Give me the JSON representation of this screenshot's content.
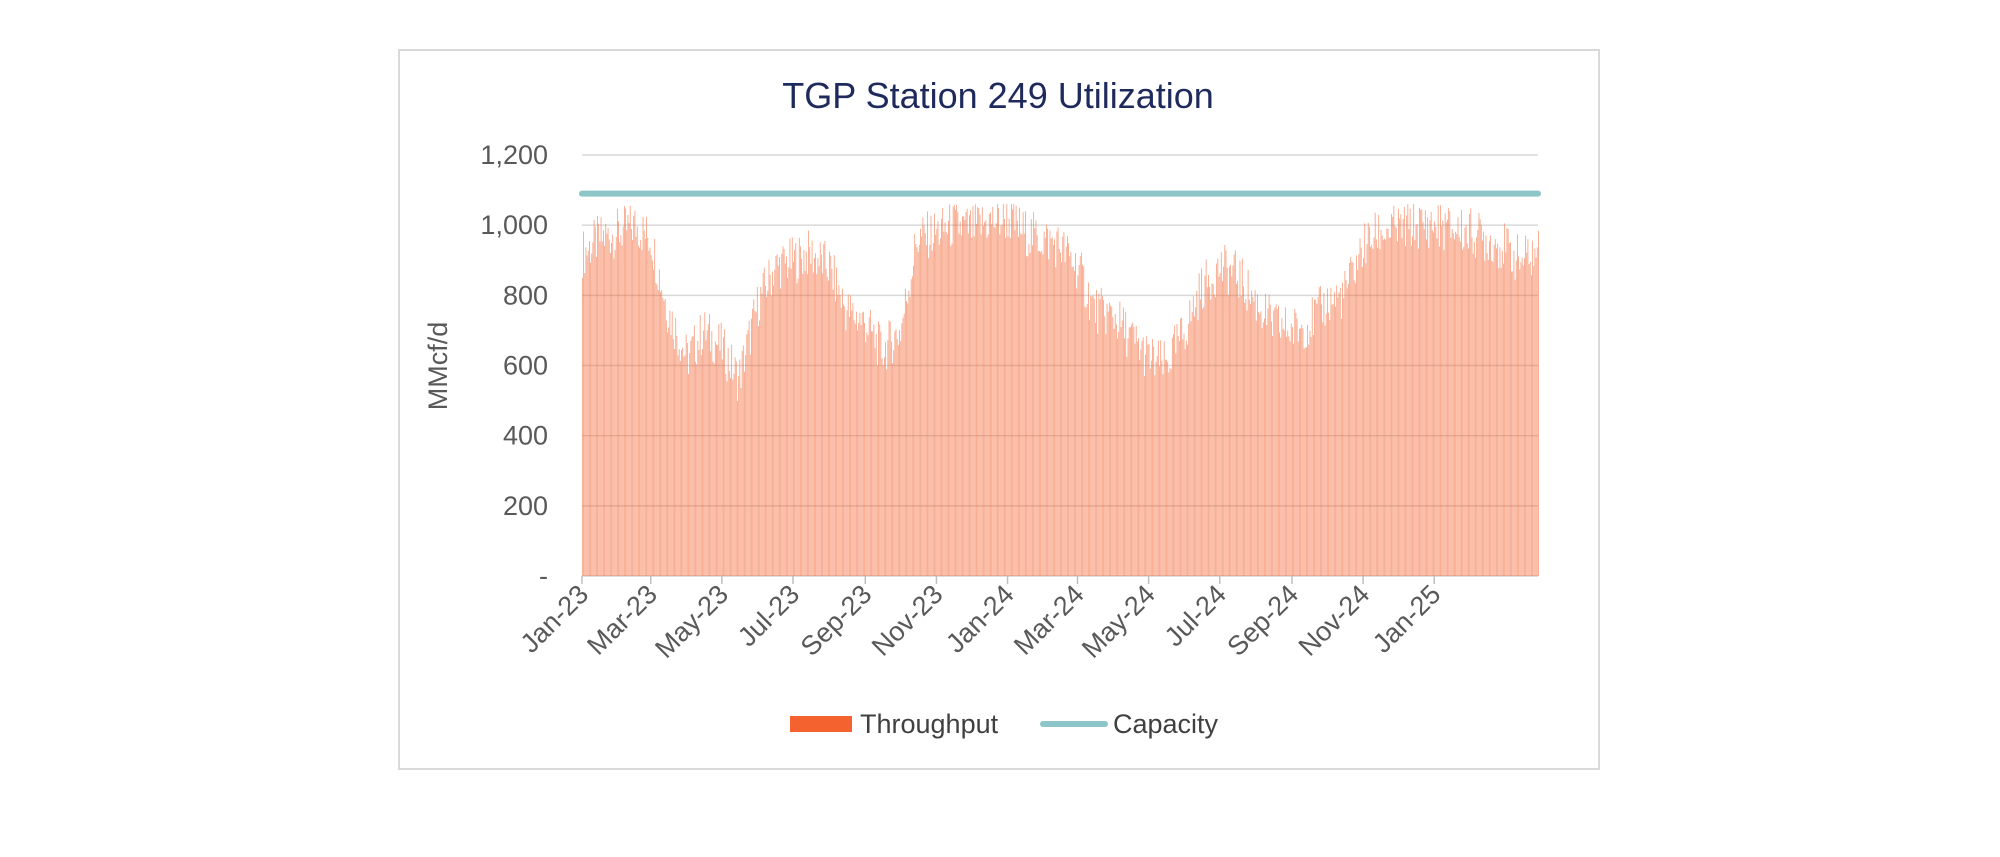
{
  "chart_data": {
    "type": "bar",
    "title": "TGP Station 249 Utilization",
    "xlabel": "",
    "ylabel": "MMcf/d",
    "ylim": [
      0,
      1200
    ],
    "y_ticks": [
      "-",
      "200",
      "400",
      "600",
      "800",
      "1,000",
      "1,200"
    ],
    "y_tick_values": [
      0,
      200,
      400,
      600,
      800,
      1000,
      1200
    ],
    "x_ticks": [
      "Jan-23",
      "Mar-23",
      "May-23",
      "Jul-23",
      "Sep-23",
      "Nov-23",
      "Jan-24",
      "Mar-24",
      "May-24",
      "Jul-24",
      "Sep-24",
      "Nov-24",
      "Jan-25"
    ],
    "x_tick_dates": [
      "2023-01-01",
      "2023-03-01",
      "2023-05-01",
      "2023-07-01",
      "2023-09-01",
      "2023-11-01",
      "2024-01-01",
      "2024-03-01",
      "2024-05-01",
      "2024-07-01",
      "2024-09-01",
      "2024-11-01",
      "2025-01-01"
    ],
    "x_range": [
      "2023-01-01",
      "2025-03-31"
    ],
    "grid": true,
    "legend_position": "bottom",
    "series": [
      {
        "name": "Throughput",
        "type": "bar",
        "color": "#f4622f",
        "fill_color": "#f7a080",
        "x": [
          "2023-01-01",
          "2023-01-15",
          "2023-02-01",
          "2023-02-15",
          "2023-03-01",
          "2023-03-15",
          "2023-04-01",
          "2023-04-15",
          "2023-05-01",
          "2023-05-15",
          "2023-06-01",
          "2023-06-15",
          "2023-07-01",
          "2023-07-15",
          "2023-08-01",
          "2023-08-15",
          "2023-09-01",
          "2023-09-15",
          "2023-10-01",
          "2023-10-15",
          "2023-11-01",
          "2023-11-15",
          "2023-12-01",
          "2023-12-15",
          "2024-01-01",
          "2024-01-15",
          "2024-02-01",
          "2024-02-15",
          "2024-03-01",
          "2024-03-15",
          "2024-04-01",
          "2024-04-15",
          "2024-05-01",
          "2024-05-15",
          "2024-06-01",
          "2024-06-15",
          "2024-07-01",
          "2024-07-15",
          "2024-08-01",
          "2024-08-15",
          "2024-09-01",
          "2024-09-15",
          "2024-10-01",
          "2024-10-15",
          "2024-11-01",
          "2024-11-15",
          "2024-12-01",
          "2024-12-15",
          "2025-01-01",
          "2025-01-15",
          "2025-02-01",
          "2025-02-15",
          "2025-03-01",
          "2025-03-15",
          "2025-03-31"
        ],
        "values": [
          920,
          960,
          980,
          1000,
          960,
          760,
          620,
          700,
          650,
          560,
          780,
          880,
          900,
          920,
          880,
          760,
          720,
          640,
          700,
          960,
          980,
          1000,
          990,
          1010,
          1020,
          980,
          960,
          940,
          880,
          760,
          740,
          680,
          620,
          600,
          700,
          820,
          880,
          860,
          780,
          720,
          700,
          720,
          780,
          800,
          940,
          980,
          990,
          1000,
          1000,
          990,
          980,
          960,
          940,
          900,
          920
        ]
      },
      {
        "name": "Capacity",
        "type": "line",
        "color": "#8cc6c9",
        "x": [
          "2023-01-01",
          "2025-03-31"
        ],
        "values": [
          1090,
          1090
        ]
      }
    ]
  }
}
